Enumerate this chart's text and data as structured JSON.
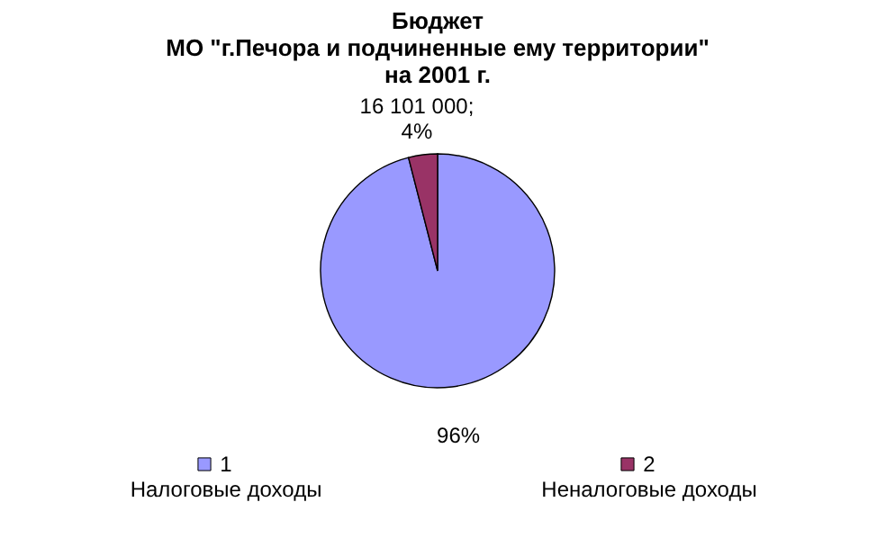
{
  "chart_data": {
    "type": "pie",
    "title": "Бюджет\nМО \"г.Печора и подчиненные ему территории\"\nна 2001 г.",
    "categories": [
      "1\nНалоговые доходы",
      "2\nНеналоговые доходы"
    ],
    "values": [
      96,
      4
    ],
    "colors": [
      "#9999ff",
      "#993366"
    ],
    "value_labels": [
      "96%",
      "16 101 000;\n4%"
    ],
    "legend": "bottom"
  }
}
